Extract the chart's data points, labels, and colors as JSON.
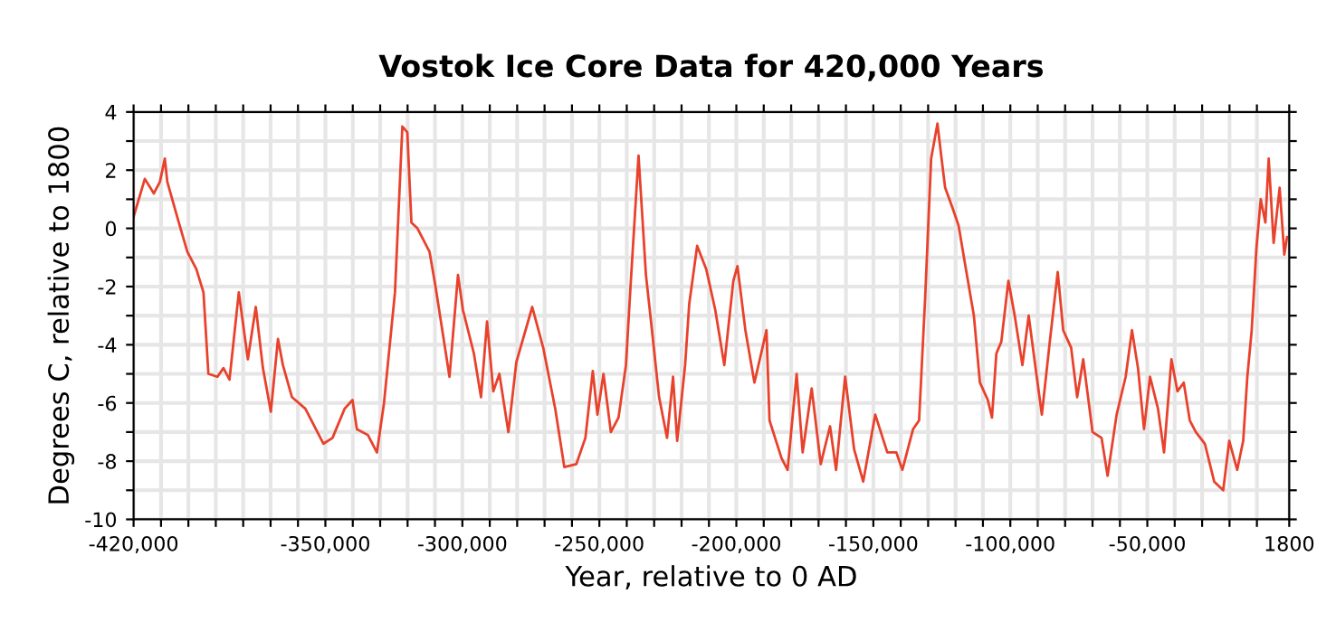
{
  "chart_data": {
    "type": "line",
    "title": "Vostok Ice Core Data for 420,000 Years",
    "xlabel": "Year, relative to 0 AD",
    "ylabel": "Degrees C, relative to 1800",
    "xlim": [
      -420000,
      1800
    ],
    "ylim": [
      -10,
      4
    ],
    "grid": true,
    "marker": "none",
    "line_style": "solid",
    "xticks": [
      {
        "value": -420000,
        "label": "-420,000"
      },
      {
        "value": -410000,
        "label": null
      },
      {
        "value": -400000,
        "label": null
      },
      {
        "value": -390000,
        "label": null
      },
      {
        "value": -380000,
        "label": null
      },
      {
        "value": -370000,
        "label": null
      },
      {
        "value": -360000,
        "label": null
      },
      {
        "value": -350000,
        "label": "-350,000"
      },
      {
        "value": -340000,
        "label": null
      },
      {
        "value": -330000,
        "label": null
      },
      {
        "value": -320000,
        "label": null
      },
      {
        "value": -310000,
        "label": null
      },
      {
        "value": -300000,
        "label": "-300,000"
      },
      {
        "value": -290000,
        "label": null
      },
      {
        "value": -280000,
        "label": null
      },
      {
        "value": -270000,
        "label": null
      },
      {
        "value": -260000,
        "label": null
      },
      {
        "value": -250000,
        "label": "-250,000"
      },
      {
        "value": -240000,
        "label": null
      },
      {
        "value": -230000,
        "label": null
      },
      {
        "value": -220000,
        "label": null
      },
      {
        "value": -210000,
        "label": null
      },
      {
        "value": -200000,
        "label": "-200,000"
      },
      {
        "value": -190000,
        "label": null
      },
      {
        "value": -180000,
        "label": null
      },
      {
        "value": -170000,
        "label": null
      },
      {
        "value": -160000,
        "label": null
      },
      {
        "value": -150000,
        "label": "-150,000"
      },
      {
        "value": -140000,
        "label": null
      },
      {
        "value": -130000,
        "label": null
      },
      {
        "value": -120000,
        "label": null
      },
      {
        "value": -110000,
        "label": null
      },
      {
        "value": -100000,
        "label": "-100,000"
      },
      {
        "value": -90000,
        "label": null
      },
      {
        "value": -80000,
        "label": null
      },
      {
        "value": -70000,
        "label": null
      },
      {
        "value": -60000,
        "label": null
      },
      {
        "value": -50000,
        "label": "-50,000"
      },
      {
        "value": -40000,
        "label": null
      },
      {
        "value": -30000,
        "label": null
      },
      {
        "value": -20000,
        "label": null
      },
      {
        "value": -10000,
        "label": null
      },
      {
        "value": 1800,
        "label": "1800"
      }
    ],
    "yticks": [
      {
        "value": -10,
        "label": "-10"
      },
      {
        "value": -9,
        "label": null
      },
      {
        "value": -8,
        "label": "-8"
      },
      {
        "value": -7,
        "label": null
      },
      {
        "value": -6,
        "label": "-6"
      },
      {
        "value": -5,
        "label": null
      },
      {
        "value": -4,
        "label": "-4"
      },
      {
        "value": -3,
        "label": null
      },
      {
        "value": -2,
        "label": "-2"
      },
      {
        "value": -1,
        "label": null
      },
      0,
      {
        "value": 1,
        "label": null
      },
      2,
      {
        "value": 3,
        "label": null
      },
      4
    ],
    "series": [
      {
        "color": "#e8412c",
        "x": [
          -420000,
          -415900,
          -412600,
          -410400,
          -408600,
          -407700,
          -403800,
          -400400,
          -397100,
          -394500,
          -392700,
          -389400,
          -387200,
          -385000,
          -381600,
          -378300,
          -375400,
          -372800,
          -369900,
          -367300,
          -365500,
          -362200,
          -357300,
          -350700,
          -347400,
          -343000,
          -340100,
          -338500,
          -334500,
          -331200,
          -328600,
          -324600,
          -321900,
          -320100,
          -318600,
          -316400,
          -312000,
          -309800,
          -304700,
          -301600,
          -299800,
          -295800,
          -293200,
          -291000,
          -288700,
          -286500,
          -283200,
          -280300,
          -274500,
          -270500,
          -266100,
          -262800,
          -258400,
          -255100,
          -252400,
          -250700,
          -248500,
          -245800,
          -243000,
          -240300,
          -238500,
          -235700,
          -233000,
          -230800,
          -228200,
          -225300,
          -223100,
          -221600,
          -218700,
          -217200,
          -214300,
          -211000,
          -207700,
          -204400,
          -201100,
          -199600,
          -196700,
          -193400,
          -189000,
          -187900,
          -183500,
          -181300,
          -178000,
          -175800,
          -172500,
          -169200,
          -165800,
          -163600,
          -160300,
          -157000,
          -153700,
          -149300,
          -144900,
          -141600,
          -139400,
          -135500,
          -133300,
          -131100,
          -128900,
          -126600,
          -125100,
          -123800,
          -121100,
          -118900,
          -116200,
          -113300,
          -111100,
          -108200,
          -106700,
          -105100,
          -103300,
          -100700,
          -98400,
          -95600,
          -93300,
          -90500,
          -88500,
          -85600,
          -82700,
          -80700,
          -77800,
          -75600,
          -73400,
          -70000,
          -66700,
          -64500,
          -61200,
          -57900,
          -55600,
          -53400,
          -51200,
          -49000,
          -46100,
          -43900,
          -41200,
          -39000,
          -36700,
          -34500,
          -32300,
          -29000,
          -25600,
          -22300,
          -20100,
          -17200,
          -15000,
          -13500,
          -11900,
          -10200,
          -8600,
          -6900,
          -5700,
          -3900,
          -1700,
          0,
          1000
        ],
        "values": [
          0.4,
          1.7,
          1.2,
          1.6,
          2.4,
          1.6,
          0.3,
          -0.8,
          -1.4,
          -2.2,
          -5.0,
          -5.1,
          -4.8,
          -5.2,
          -2.2,
          -4.5,
          -2.7,
          -4.8,
          -6.3,
          -3.8,
          -4.7,
          -5.8,
          -6.2,
          -7.4,
          -7.2,
          -6.2,
          -5.9,
          -6.9,
          -7.1,
          -7.7,
          -6.0,
          -2.2,
          3.5,
          3.3,
          0.2,
          0.0,
          -0.8,
          -2.0,
          -5.1,
          -1.6,
          -2.8,
          -4.3,
          -5.8,
          -3.2,
          -5.6,
          -5.0,
          -7.0,
          -4.6,
          -2.7,
          -4.1,
          -6.2,
          -8.2,
          -8.1,
          -7.2,
          -4.9,
          -6.4,
          -5.0,
          -7.0,
          -6.5,
          -4.7,
          -1.8,
          2.5,
          -1.6,
          -3.5,
          -5.8,
          -7.2,
          -5.1,
          -7.3,
          -4.7,
          -2.6,
          -0.6,
          -1.4,
          -2.8,
          -4.7,
          -1.8,
          -1.3,
          -3.5,
          -5.3,
          -3.5,
          -6.6,
          -7.9,
          -8.3,
          -5.0,
          -7.7,
          -5.5,
          -8.1,
          -6.8,
          -8.3,
          -5.1,
          -7.6,
          -8.7,
          -6.4,
          -7.7,
          -7.7,
          -8.3,
          -6.9,
          -6.6,
          -2.4,
          2.4,
          3.6,
          2.4,
          1.4,
          0.7,
          0.1,
          -1.4,
          -3.0,
          -5.3,
          -5.9,
          -6.5,
          -4.3,
          -3.9,
          -1.8,
          -3.0,
          -4.7,
          -3.0,
          -5.0,
          -6.4,
          -3.9,
          -1.5,
          -3.5,
          -4.1,
          -5.8,
          -4.5,
          -7.0,
          -7.2,
          -8.5,
          -6.4,
          -5.1,
          -3.5,
          -4.8,
          -6.9,
          -5.1,
          -6.2,
          -7.7,
          -4.5,
          -5.6,
          -5.3,
          -6.6,
          -7.0,
          -7.4,
          -8.7,
          -9.0,
          -7.3,
          -8.3,
          -7.3,
          -5.1,
          -3.5,
          -0.7,
          1.0,
          0.2,
          2.4,
          -0.5,
          1.4,
          -0.9,
          -0.3
        ]
      }
    ]
  }
}
